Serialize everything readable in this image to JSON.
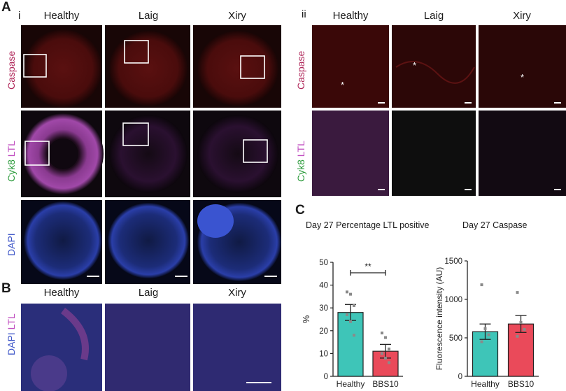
{
  "figure": {
    "panel_a_label": "A",
    "panel_b_label": "B",
    "panel_c_label": "C",
    "sub_i": "i",
    "sub_ii": "ii",
    "columns": [
      "Healthy",
      "Laig",
      "Xiry"
    ],
    "rows_a": {
      "caspase": "Caspase",
      "cyk8": "Cyk8",
      "ltl": "LTL",
      "dapi": "DAPI"
    },
    "rows_b": {
      "dapi": "DAPI",
      "ltl": "LTL"
    },
    "asterisk": "*",
    "colors": {
      "caspase_label": "#b0285a",
      "cyk8_label": "#2a9a3a",
      "ltl_label": "#c04cc0",
      "dapi_label": "#3e56c8",
      "tile_dark": "#180606"
    }
  },
  "chart_data": [
    {
      "type": "bar",
      "title": "Day 27 Percentage LTL positive",
      "ylabel": "%",
      "categories": [
        "Healthy",
        "BBS10"
      ],
      "values": [
        28,
        11
      ],
      "errors": [
        3.5,
        3
      ],
      "points": [
        [
          37,
          36,
          31,
          27,
          24,
          18
        ],
        [
          19,
          17,
          12,
          10,
          8,
          6
        ]
      ],
      "ylim": [
        0,
        50
      ],
      "yticks": [
        0,
        10,
        20,
        30,
        40,
        50
      ],
      "significance": "**",
      "colors": [
        "#3ec5b8",
        "#ea4a5a"
      ]
    },
    {
      "type": "bar",
      "title": "Day 27 Caspase",
      "ylabel": "Fluorescence intensity (AU)",
      "categories": [
        "Healthy",
        "BBS10"
      ],
      "values": [
        580,
        680
      ],
      "errors": [
        100,
        110
      ],
      "points": [
        [
          1190,
          620,
          540,
          450
        ],
        [
          1090,
          700,
          610,
          520
        ]
      ],
      "ylim": [
        0,
        1500
      ],
      "yticks": [
        0,
        500,
        1000,
        1500
      ],
      "colors": [
        "#3ec5b8",
        "#ea4a5a"
      ]
    }
  ]
}
